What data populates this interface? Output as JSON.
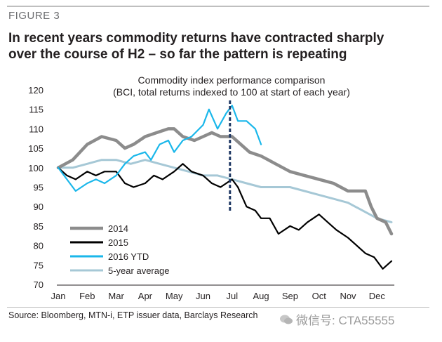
{
  "figure_label": "FIGURE 3",
  "headline_line1": "In recent years commodity returns have contracted sharply",
  "headline_line2": "over the course of H2 – so far the pattern is repeating",
  "source": "Source: Bloomberg, MTN-i, ETP issuer data, Barclays Research",
  "watermark": "微信号: CTA55555",
  "colors": {
    "s2014": "#8c8c8c",
    "s2015": "#000000",
    "s2016": "#1ab7ea",
    "s5y": "#a6c8d6",
    "divider": "#1f3864"
  },
  "chart_data": {
    "type": "line",
    "title": "Commodity index performance comparison",
    "subtitle": "(BCI, total returns indexed to 100 at start of each year)",
    "xlabel": "",
    "ylabel": "",
    "categories": [
      "Jan",
      "Feb",
      "Mar",
      "Apr",
      "May",
      "Jun",
      "Jul",
      "Aug",
      "Sep",
      "Oct",
      "Nov",
      "Dec"
    ],
    "ylim": [
      70,
      120
    ],
    "yticks": [
      70,
      75,
      80,
      85,
      90,
      95,
      100,
      105,
      110,
      115,
      120
    ],
    "divider_x": 6.0,
    "legend_position": "bottom-left",
    "series": [
      {
        "name": "2014",
        "x": [
          0,
          0.5,
          1,
          1.5,
          2,
          2.3,
          2.6,
          3,
          3.4,
          3.8,
          4,
          4.3,
          4.7,
          5,
          5.3,
          5.6,
          6,
          6.3,
          6.6,
          7,
          7.5,
          8,
          8.5,
          9,
          9.5,
          10,
          10.3,
          10.6,
          10.8,
          11,
          11.3,
          11.5
        ],
        "values": [
          100,
          102,
          106,
          108,
          107,
          105,
          106,
          108,
          109,
          110,
          110,
          108,
          107,
          108,
          109,
          108,
          108,
          106,
          104,
          103,
          101,
          99,
          98,
          97,
          96,
          94,
          94,
          94,
          90,
          87,
          86,
          83
        ]
      },
      {
        "name": "2015",
        "x": [
          0,
          0.3,
          0.6,
          1,
          1.3,
          1.6,
          2,
          2.3,
          2.6,
          3,
          3.3,
          3.6,
          4,
          4.3,
          4.6,
          5,
          5.3,
          5.6,
          6,
          6.2,
          6.5,
          6.8,
          7,
          7.3,
          7.6,
          8,
          8.3,
          8.6,
          9,
          9.3,
          9.6,
          10,
          10.3,
          10.6,
          10.9,
          11.2,
          11.5
        ],
        "values": [
          100,
          98,
          97,
          99,
          98,
          99,
          99,
          96,
          95,
          96,
          98,
          97,
          99,
          101,
          99,
          98,
          96,
          95,
          97,
          95,
          90,
          89,
          87,
          87,
          83,
          85,
          84,
          86,
          88,
          86,
          84,
          82,
          80,
          78,
          77,
          74,
          76
        ]
      },
      {
        "name": "2016 YTD",
        "x": [
          0,
          0.3,
          0.6,
          1,
          1.3,
          1.6,
          2,
          2.3,
          2.6,
          3,
          3.2,
          3.5,
          3.8,
          4,
          4.3,
          4.6,
          5,
          5.2,
          5.5,
          5.8,
          6,
          6.2,
          6.5,
          6.8,
          7
        ],
        "values": [
          100,
          97,
          94,
          96,
          97,
          96,
          98,
          101,
          103,
          104,
          102,
          106,
          107,
          104,
          107,
          108,
          111,
          115,
          110,
          114,
          116,
          112,
          112,
          110,
          106
        ]
      },
      {
        "name": "5-year average",
        "x": [
          0,
          0.5,
          1,
          1.5,
          2,
          2.5,
          3,
          3.5,
          4,
          4.5,
          5,
          5.5,
          6,
          6.5,
          7,
          7.5,
          8,
          8.5,
          9,
          9.5,
          10,
          10.5,
          11,
          11.5
        ],
        "values": [
          100,
          100,
          101,
          102,
          102,
          101,
          102,
          101,
          100,
          99,
          98,
          98,
          97,
          96,
          95,
          95,
          95,
          94,
          93,
          92,
          91,
          89,
          87,
          86
        ]
      }
    ]
  }
}
